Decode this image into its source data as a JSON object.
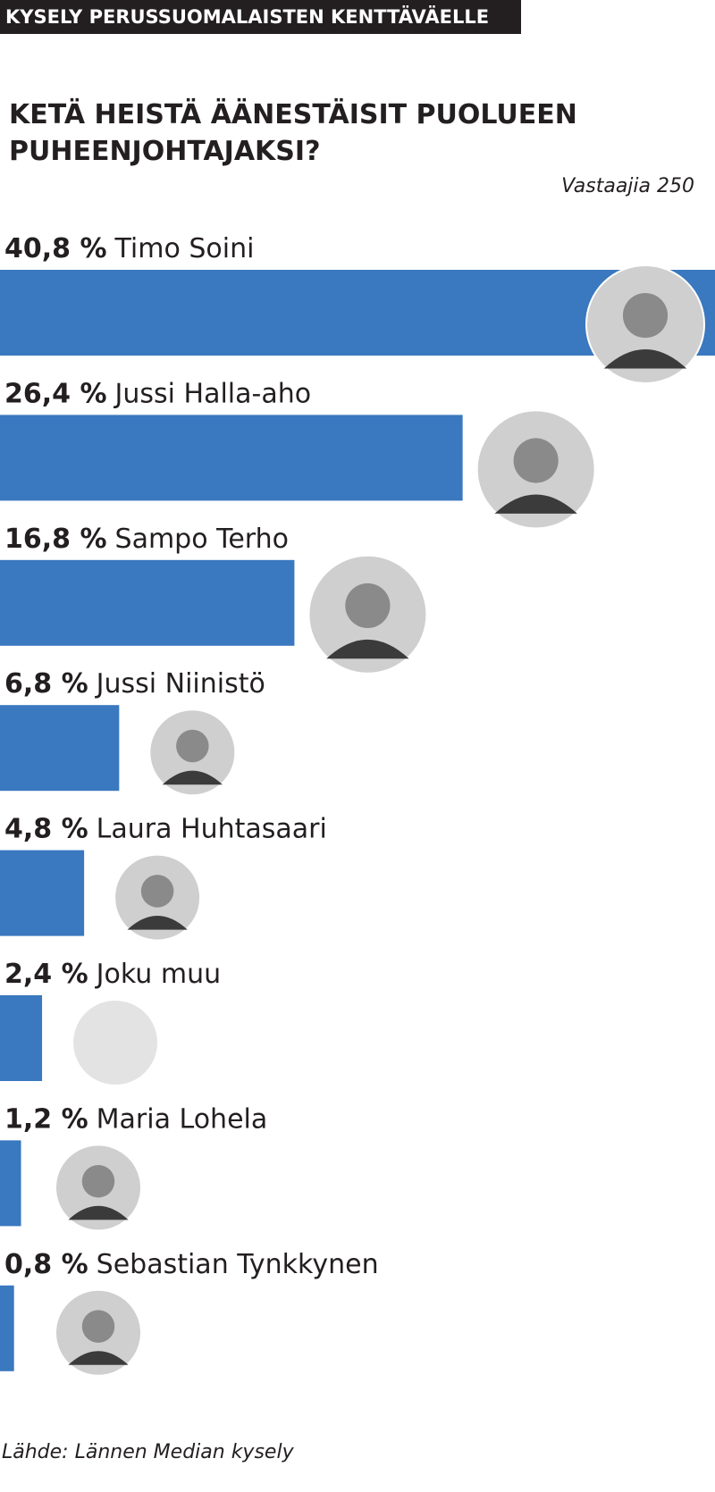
{
  "chart_data": {
    "type": "bar",
    "orientation": "horizontal",
    "header": "KYSELY PERUSSUOMALAISTEN KENTTÄVÄELLE",
    "title": "KETÄ HEISTÄ ÄÄNESTÄISIT PUOLUEEN PUHEENJOHTAJAKSI?",
    "subtitle": "Vastaajia 250",
    "source": "Lähde: Lännen Median kysely",
    "categories": [
      "Timo Soini",
      "Jussi Halla-aho",
      "Sampo Terho",
      "Jussi Niinistö",
      "Laura Huhtasaari",
      "Joku muu",
      "Maria Lohela",
      "Sebastian Tynkkynen"
    ],
    "values": [
      40.8,
      26.4,
      16.8,
      6.8,
      4.8,
      2.4,
      1.2,
      0.8
    ],
    "value_labels": [
      "40,8 %",
      "26,4 %",
      "16,8 %",
      "6,8 %",
      "4,8 %",
      "2,4 %",
      "1,2 %",
      "0,8 %"
    ],
    "color": "#3a78bf",
    "xlim": [
      0,
      40.8
    ]
  }
}
